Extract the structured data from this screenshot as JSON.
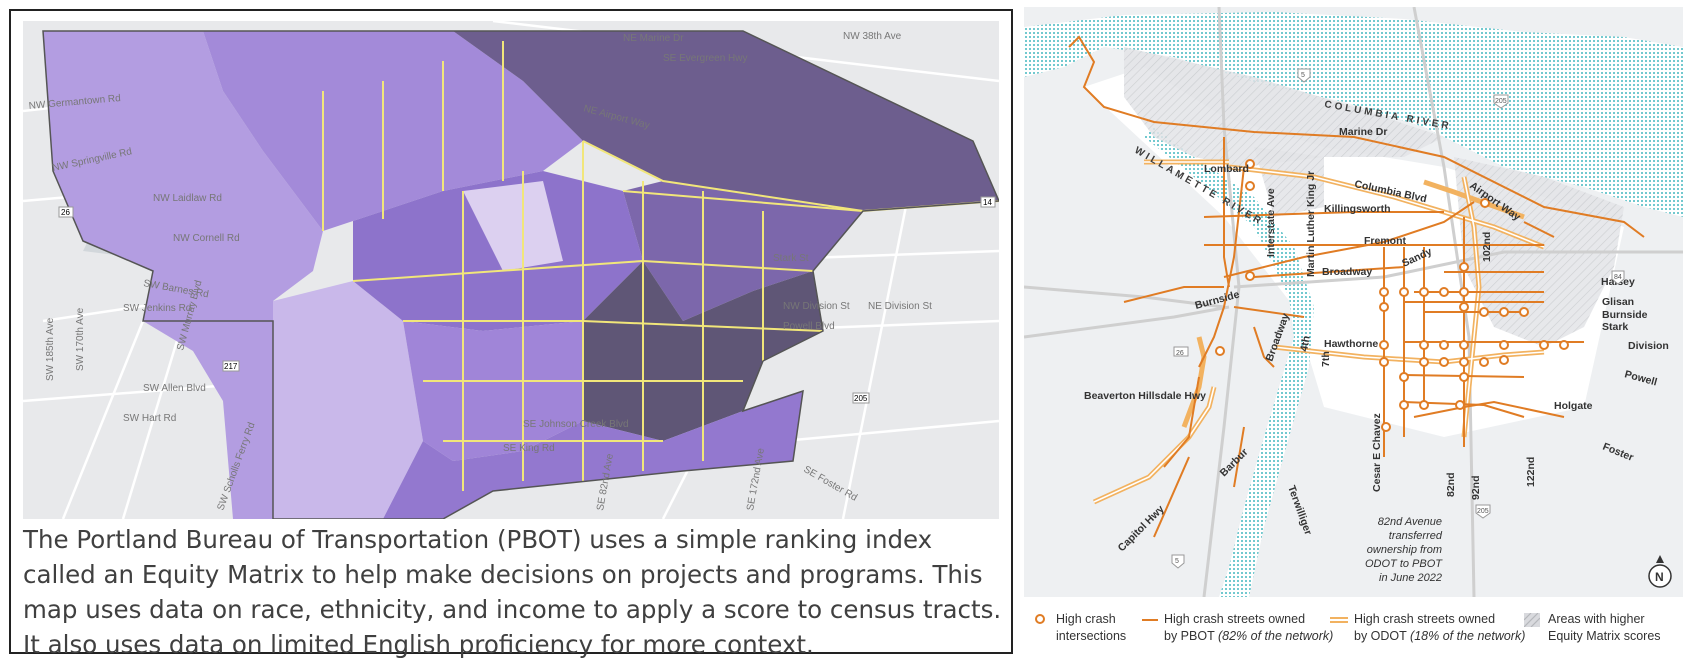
{
  "left": {
    "caption": "The Portland Bureau of Transportation (PBOT) uses a simple ranking index called an Equity Matrix to help make decisions on projects and programs. This map uses data on race, ethnicity, and income to apply a score to census tracts. It also uses data on limited English proficiency for more context.",
    "equity_colors": {
      "low": "#d9cdee",
      "mid_low": "#b79ee3",
      "mid": "#9b80d6",
      "high": "#6d5b97",
      "highest": "#5c5470",
      "boundary": "#f5ea7a"
    },
    "street_labels": {
      "nw_germantown": "NW Germantown Rd",
      "nw_springville": "NW Springville Rd",
      "nw_laidlaw": "NW Laidlaw Rd",
      "nw_cornell": "NW Cornell Rd",
      "sw_barnes": "SW Barnes Rd",
      "sw_jenkins": "SW Jenkins Rd",
      "sw_allen": "SW Allen Blvd",
      "sw_hart": "SW Hart Rd",
      "sw_185th": "SW 185th Ave",
      "sw_170th": "SW 170th Ave",
      "sw_murray": "SW Murray Blvd",
      "nw_marine": "NE Marine Dr",
      "se_evergreen": "SE Evergreen Hwy",
      "nw_38th": "NW 38th Ave",
      "ne_airport": "NE Airport Way",
      "stark": "Stark St",
      "nw_division": "NW Division St",
      "powell": "Powell Blvd",
      "se_johnson": "SE Johnson Creek Blvd",
      "se_king": "SE King Rd",
      "se_82nd": "SE 82nd Ave",
      "se_172nd": "SE 172nd Ave",
      "ne_division": "NE Division St",
      "se_foster": "SE Foster Rd",
      "sw_scholls": "SW Scholls Ferry Rd",
      "hwy_26": "26",
      "hwy_217": "217",
      "hwy_205": "205",
      "hwy_14": "14"
    }
  },
  "right": {
    "colors": {
      "pbot": "#e07c24",
      "odot": "#f2b260",
      "water": "#52c2c8",
      "roads": "#c8c8c8"
    },
    "water_labels": {
      "columbia": "COLUMBIA RIVER",
      "willamette": "WILLAMETTE RIVER"
    },
    "street_labels": {
      "marine": "Marine Dr",
      "lombard": "Lombard",
      "columbia_blvd": "Columbia Blvd",
      "airport": "Airport Way",
      "killingsworth": "Killingsworth",
      "fremont": "Fremont",
      "broadway_ne": "Broadway",
      "sandy": "Sandy",
      "interstate": "Interstate Ave",
      "mlk": "Martin Luther King Jr",
      "ave102": "102nd",
      "halsey": "Halsey",
      "glisan": "Glisan",
      "burnside_e": "Burnside",
      "stark": "Stark",
      "burnside_w": "Burnside",
      "broadway_dt": "Broadway",
      "fourth": "4th",
      "hawthorne": "Hawthorne",
      "seventh": "7th",
      "division": "Division",
      "beaverton": "Beaverton Hillsdale Hwy",
      "powell": "Powell",
      "holgate": "Holgate",
      "foster": "Foster",
      "barbur": "Barbur",
      "cesar": "Cesar E Chavez",
      "ave82": "82nd",
      "ave92": "92nd",
      "ave122": "122nd",
      "terwilliger": "Terwilliger",
      "capitol": "Capitol Hwy"
    },
    "shields": {
      "i5": "5",
      "i205": "205",
      "i84": "84",
      "us26": "26",
      "i205s": "205",
      "i5s": "5"
    },
    "note": [
      "82nd Avenue",
      "transferred",
      "ownership from",
      "ODOT to PBOT",
      "in June 2022"
    ],
    "north": "N",
    "legend": {
      "intersections_line1": "High crash",
      "intersections_line2": "intersections",
      "pbot_line1": "High crash streets owned",
      "pbot_line2_prefix": "by PBOT",
      "pbot_line2_italic": "(82% of the network)",
      "odot_line1": "High crash streets owned",
      "odot_line2_prefix": "by ODOT",
      "odot_line2_italic": "(18% of the network)",
      "equity_line1": "Areas with higher",
      "equity_line2": "Equity Matrix scores"
    }
  }
}
